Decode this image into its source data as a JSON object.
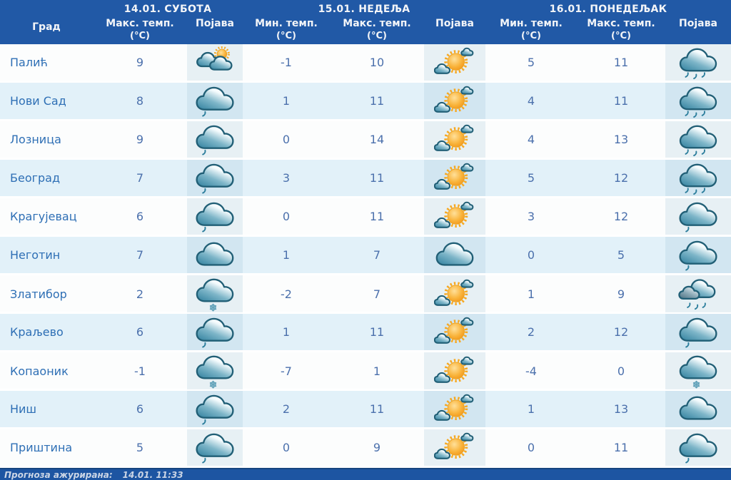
{
  "header": {
    "days": [
      {
        "label": "14.01. СУБОТА"
      },
      {
        "label": "15.01. НЕДЕЉА"
      },
      {
        "label": "16.01. ПОНЕДЕЉАК"
      }
    ],
    "columns": [
      {
        "label": "Град",
        "unit": ""
      },
      {
        "label": "Макс. темп.",
        "unit": "(°C)"
      },
      {
        "label": "Појава",
        "unit": ""
      },
      {
        "label": "Мин. темп.",
        "unit": "(°C)"
      },
      {
        "label": "Макс. темп.",
        "unit": "(°C)"
      },
      {
        "label": "Појава",
        "unit": ""
      },
      {
        "label": "Мин. темп.",
        "unit": "(°C)"
      },
      {
        "label": "Макс. темп.",
        "unit": "(°C)"
      },
      {
        "label": "Појава",
        "unit": ""
      }
    ]
  },
  "icons": {
    "cloud-sun": "two clouds with sun peeking top-right (partly cloudy)",
    "sun-cloud": "large sun with small clouds (mostly sunny)",
    "cloud": "plain cloud (cloudy)",
    "cloud-drizzle": "cloud with one rain drop (light rain)",
    "cloud-rain": "cloud with several rain drops (rain)",
    "clouds-rain": "dark double cloud with rain drops (overcast rain)",
    "cloud-snow": "cloud with snowflake (snow)"
  },
  "colors": {
    "header_bg": "#2159a6",
    "row_white": "#fcfdfd",
    "row_blue": "#e2f1f9",
    "city_text": "#2e6fb5",
    "temp_text": "#4b70ac",
    "footer_bg": "#1d55a2",
    "cloud_teal": "#2f7f9d",
    "sun_orange": "#f6a821"
  },
  "rows": [
    {
      "city": "Палић",
      "d1": {
        "max": "9",
        "icon": "cloud-sun"
      },
      "d2": {
        "min": "-1",
        "max": "10",
        "icon": "sun-cloud"
      },
      "d3": {
        "min": "5",
        "max": "11",
        "icon": "cloud-rain"
      }
    },
    {
      "city": "Нови Сад",
      "d1": {
        "max": "8",
        "icon": "cloud-drizzle"
      },
      "d2": {
        "min": "1",
        "max": "11",
        "icon": "sun-cloud"
      },
      "d3": {
        "min": "4",
        "max": "11",
        "icon": "cloud-rain"
      }
    },
    {
      "city": "Лозница",
      "d1": {
        "max": "9",
        "icon": "cloud-drizzle"
      },
      "d2": {
        "min": "0",
        "max": "14",
        "icon": "sun-cloud"
      },
      "d3": {
        "min": "4",
        "max": "13",
        "icon": "cloud-rain"
      }
    },
    {
      "city": "Београд",
      "d1": {
        "max": "7",
        "icon": "cloud-drizzle"
      },
      "d2": {
        "min": "3",
        "max": "11",
        "icon": "sun-cloud"
      },
      "d3": {
        "min": "5",
        "max": "12",
        "icon": "cloud-rain"
      }
    },
    {
      "city": "Крагујевац",
      "d1": {
        "max": "6",
        "icon": "cloud-drizzle"
      },
      "d2": {
        "min": "0",
        "max": "11",
        "icon": "sun-cloud"
      },
      "d3": {
        "min": "3",
        "max": "12",
        "icon": "cloud-drizzle"
      }
    },
    {
      "city": "Неготин",
      "d1": {
        "max": "7",
        "icon": "cloud"
      },
      "d2": {
        "min": "1",
        "max": "7",
        "icon": "cloud"
      },
      "d3": {
        "min": "0",
        "max": "5",
        "icon": "cloud-drizzle"
      }
    },
    {
      "city": "Златибор",
      "d1": {
        "max": "2",
        "icon": "cloud-snow"
      },
      "d2": {
        "min": "-2",
        "max": "7",
        "icon": "sun-cloud"
      },
      "d3": {
        "min": "1",
        "max": "9",
        "icon": "clouds-rain"
      }
    },
    {
      "city": "Краљево",
      "d1": {
        "max": "6",
        "icon": "cloud-drizzle"
      },
      "d2": {
        "min": "1",
        "max": "11",
        "icon": "sun-cloud"
      },
      "d3": {
        "min": "2",
        "max": "12",
        "icon": "cloud-drizzle"
      }
    },
    {
      "city": "Копаоник",
      "d1": {
        "max": "-1",
        "icon": "cloud-snow"
      },
      "d2": {
        "min": "-7",
        "max": "1",
        "icon": "sun-cloud"
      },
      "d3": {
        "min": "-4",
        "max": "0",
        "icon": "cloud-snow"
      }
    },
    {
      "city": "Ниш",
      "d1": {
        "max": "6",
        "icon": "cloud-drizzle"
      },
      "d2": {
        "min": "2",
        "max": "11",
        "icon": "sun-cloud"
      },
      "d3": {
        "min": "1",
        "max": "13",
        "icon": "cloud"
      }
    },
    {
      "city": "Приштина",
      "d1": {
        "max": "5",
        "icon": "cloud-drizzle"
      },
      "d2": {
        "min": "0",
        "max": "9",
        "icon": "sun-cloud"
      },
      "d3": {
        "min": "0",
        "max": "11",
        "icon": "cloud-drizzle"
      }
    }
  ],
  "footer": {
    "label": "Прогноза ажурирана:",
    "value": "14.01. 11:33"
  }
}
